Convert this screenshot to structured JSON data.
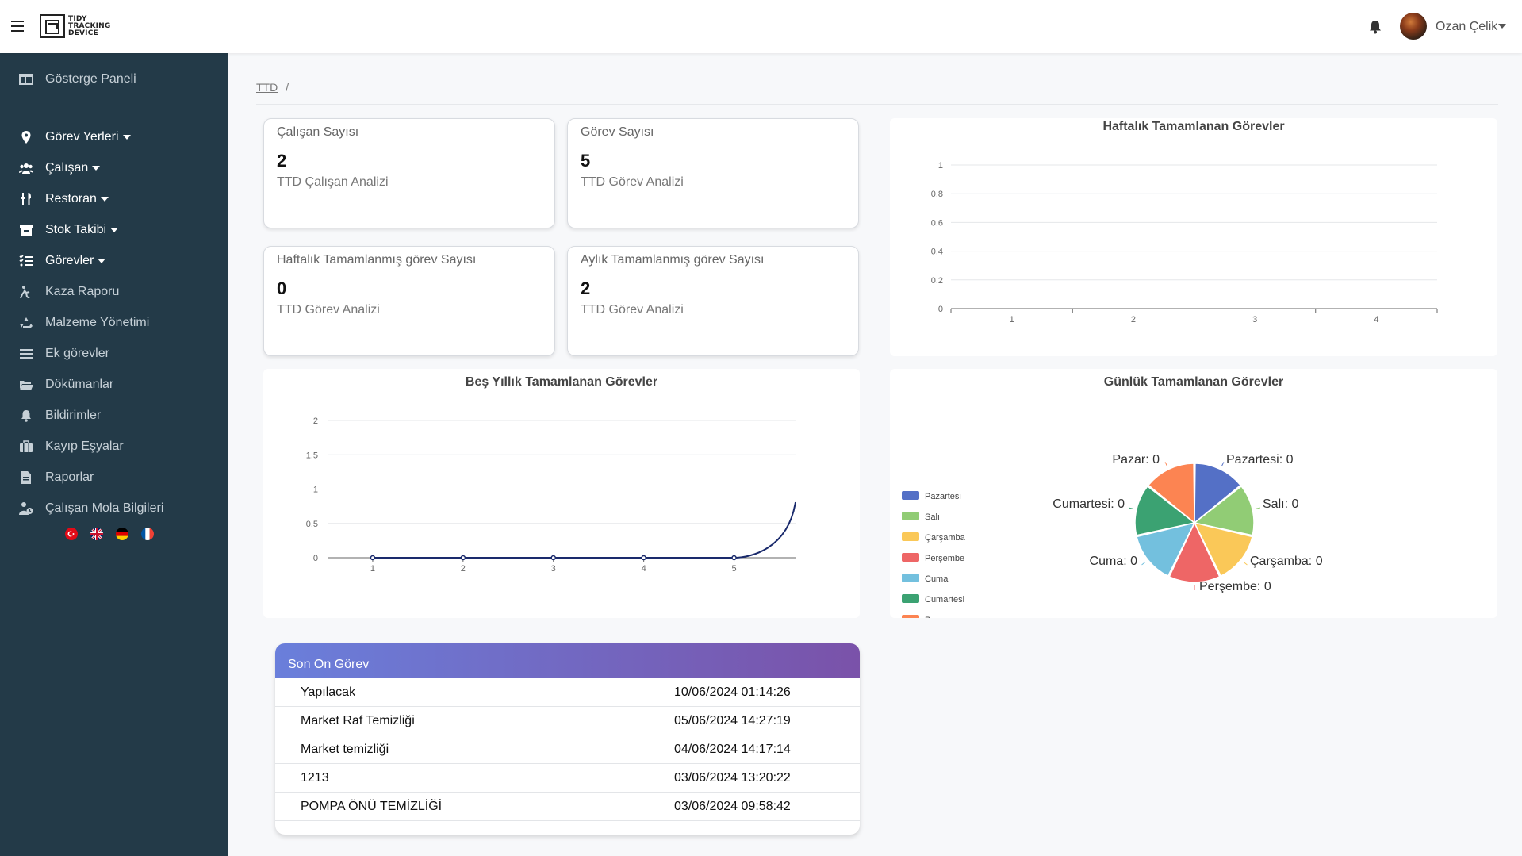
{
  "app": {
    "logo_lines": [
      "TIDY",
      "TRACKING",
      "DEVICE"
    ],
    "user_name": "Ozan Çelik"
  },
  "sidebar": {
    "items": [
      {
        "label": "Gösterge Paneli",
        "icon": "dashboard-icon"
      },
      {
        "label": "Görev Yerleri",
        "icon": "map-pin-icon",
        "dropdown": true
      },
      {
        "label": "Çalışan",
        "icon": "users-icon",
        "dropdown": true
      },
      {
        "label": "Restoran",
        "icon": "utensils-icon",
        "dropdown": true
      },
      {
        "label": "Stok Takibi",
        "icon": "archive-icon",
        "dropdown": true
      },
      {
        "label": "Görevler",
        "icon": "task-list-icon",
        "dropdown": true
      },
      {
        "label": "Kaza Raporu",
        "icon": "person-falling-icon"
      },
      {
        "label": "Malzeme Yönetimi",
        "icon": "recycle-icon"
      },
      {
        "label": "Ek görevler",
        "icon": "layers-icon"
      },
      {
        "label": "Dökümanlar",
        "icon": "folder-open-icon"
      },
      {
        "label": "Bildirimler",
        "icon": "bell-icon"
      },
      {
        "label": "Kayıp Eşyalar",
        "icon": "suitcase-icon"
      },
      {
        "label": "Raporlar",
        "icon": "file-icon"
      },
      {
        "label": "Çalışan Mola Bilgileri",
        "icon": "person-clock-icon"
      }
    ],
    "languages": [
      "tr-flag-icon",
      "uk-flag-icon",
      "de-flag-icon",
      "fr-flag-icon"
    ]
  },
  "breadcrumb": {
    "root": "TTD",
    "sep": "/"
  },
  "stats": [
    {
      "title": "Çalışan Sayısı",
      "value": "2",
      "subtitle": "TTD Çalışan Analizi"
    },
    {
      "title": "Görev Sayısı",
      "value": "5",
      "subtitle": "TTD Görev Analizi"
    },
    {
      "title": "Haftalık Tamamlanmış görev Sayısı",
      "value": "0",
      "subtitle": "TTD Görev Analizi"
    },
    {
      "title": "Aylık Tamamlanmış görev Sayısı",
      "value": "2",
      "subtitle": "TTD Görev Analizi"
    }
  ],
  "chart_data": [
    {
      "type": "bar",
      "title": "Haftalık Tamamlanan Görevler",
      "categories": [
        "1",
        "2",
        "3",
        "4"
      ],
      "values": [
        0,
        0,
        0,
        0
      ],
      "ylim": [
        0,
        1
      ],
      "yticks": [
        "0",
        "0.2",
        "0.4",
        "0.6",
        "0.8",
        "1"
      ],
      "grid": true
    },
    {
      "type": "line",
      "title": "Beş Yıllık Tamamlanan Görevler",
      "x": [
        "1",
        "2",
        "3",
        "4",
        "5"
      ],
      "values": [
        0,
        0,
        0,
        0,
        0
      ],
      "ylim": [
        0,
        2
      ],
      "yticks": [
        "0",
        "0.5",
        "1",
        "1.5",
        "2"
      ],
      "grid": true,
      "line_color": "#1a2a6c"
    },
    {
      "type": "pie",
      "title": "Günlük Tamamlanan Görevler",
      "legend_position": "left",
      "slices": [
        {
          "label": "Pazartesi",
          "value": 0,
          "color": "#5470c6",
          "callout": "Pazartesi: 0"
        },
        {
          "label": "Salı",
          "value": 0,
          "color": "#91cc75",
          "callout": "Salı: 0"
        },
        {
          "label": "Çarşamba",
          "value": 0,
          "color": "#fac858",
          "callout": "Çarşamba: 0"
        },
        {
          "label": "Perşembe",
          "value": 0,
          "color": "#ee6666",
          "callout": "Perşembe: 0"
        },
        {
          "label": "Cuma",
          "value": 0,
          "color": "#73c0de",
          "callout": "Cuma: 0"
        },
        {
          "label": "Cumartesi",
          "value": 0,
          "color": "#3ba272",
          "callout": "Cumartesi: 0"
        },
        {
          "label": "Pazar",
          "value": 0,
          "color": "#fc8452",
          "callout": "Pazar: 0"
        }
      ]
    }
  ],
  "recent_tasks": {
    "title": "Son On Görev",
    "rows": [
      {
        "name": "Yapılacak",
        "date": "10/06/2024 01:14:26"
      },
      {
        "name": "Market Raf Temizliği",
        "date": "05/06/2024 14:27:19"
      },
      {
        "name": "Market temizliği",
        "date": "04/06/2024 14:17:14"
      },
      {
        "name": "1213",
        "date": "03/06/2024 13:20:22"
      },
      {
        "name": "POMPA ÖNÜ TEMİZLİĞİ",
        "date": "03/06/2024 09:58:42"
      }
    ]
  }
}
